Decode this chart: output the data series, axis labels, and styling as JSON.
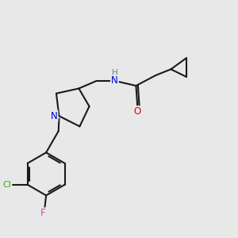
{
  "background_color": "#e8e8e8",
  "bond_color": "#1a1a1a",
  "bond_width": 1.5,
  "atom_colors": {
    "N": "#0000dd",
    "O": "#ee0000",
    "Cl": "#22bb00",
    "F": "#dd44aa",
    "H_label": "#4a9090",
    "C": "#1a1a1a"
  },
  "font_size_atom": 8.5,
  "figsize": [
    3.0,
    3.0
  ],
  "dpi": 100
}
